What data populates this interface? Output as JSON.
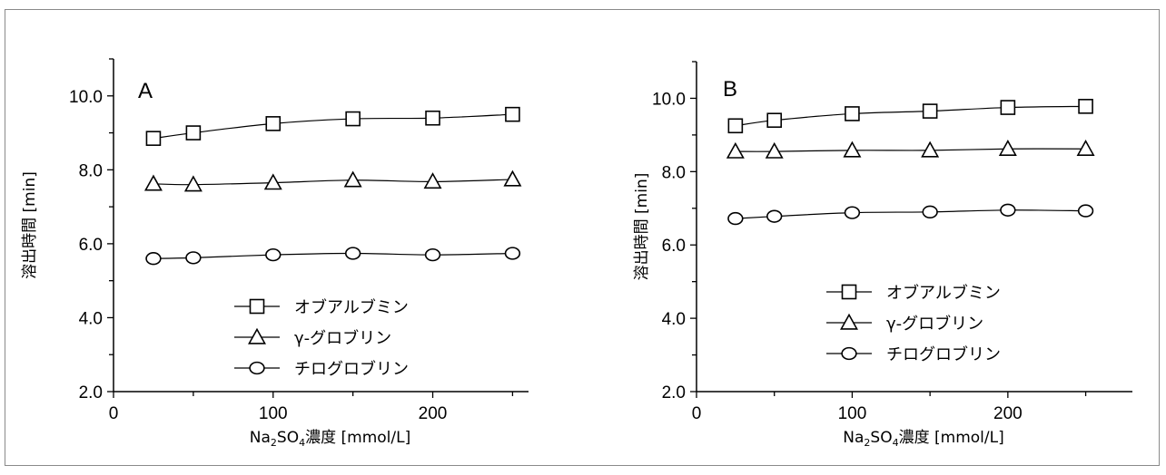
{
  "chart_data": [
    {
      "type": "line",
      "panel_label": "A",
      "xlabel": {
        "prefix": "Na",
        "sub1": "2",
        "mid": "SO",
        "sub2": "4",
        "suffix": "濃度 [mmol/L]"
      },
      "ylabel": "溶出時間 [min]",
      "xlim": [
        0,
        260
      ],
      "ylim": [
        2.0,
        11.0
      ],
      "xticks": [
        {
          "v": 0,
          "label": "0"
        },
        {
          "v": 100,
          "label": "100"
        },
        {
          "v": 200,
          "label": "200"
        }
      ],
      "yticks": [
        {
          "v": 2.0,
          "label": "2.0"
        },
        {
          "v": 4.0,
          "label": "4.0"
        },
        {
          "v": 6.0,
          "label": "6.0"
        },
        {
          "v": 8.0,
          "label": "8.0"
        },
        {
          "v": 10.0,
          "label": "10.0"
        }
      ],
      "legend_position": "lower-middle",
      "grid": false,
      "x": [
        25,
        50,
        100,
        150,
        200,
        250
      ],
      "series": [
        {
          "name": "オブアルブミン",
          "marker": "square",
          "values": [
            8.85,
            9.0,
            9.25,
            9.38,
            9.4,
            9.5
          ]
        },
        {
          "name": "γ-グロブリン",
          "marker": "triangle",
          "values": [
            7.62,
            7.6,
            7.65,
            7.72,
            7.68,
            7.74
          ]
        },
        {
          "name": "チログロブリン",
          "marker": "circle",
          "values": [
            5.6,
            5.62,
            5.7,
            5.74,
            5.7,
            5.74
          ]
        }
      ]
    },
    {
      "type": "line",
      "panel_label": "B",
      "xlabel": {
        "prefix": "Na",
        "sub1": "2",
        "mid": "SO",
        "sub2": "4",
        "suffix": "濃度 [mmol/L]"
      },
      "ylabel": "溶出時間 [min]",
      "xlim": [
        0,
        280
      ],
      "ylim": [
        2.0,
        11.0
      ],
      "xticks": [
        {
          "v": 0,
          "label": "0"
        },
        {
          "v": 100,
          "label": "100"
        },
        {
          "v": 200,
          "label": "200"
        }
      ],
      "yticks": [
        {
          "v": 2.0,
          "label": "2.0"
        },
        {
          "v": 4.0,
          "label": "4.0"
        },
        {
          "v": 6.0,
          "label": "6.0"
        },
        {
          "v": 8.0,
          "label": "8.0"
        },
        {
          "v": 10.0,
          "label": "10.0"
        }
      ],
      "legend_position": "lower-middle",
      "grid": false,
      "x": [
        25,
        50,
        100,
        150,
        200,
        250
      ],
      "series": [
        {
          "name": "オブアルブミン",
          "marker": "square",
          "values": [
            9.25,
            9.4,
            9.58,
            9.65,
            9.75,
            9.78
          ]
        },
        {
          "name": "γ-グロブリン",
          "marker": "triangle",
          "values": [
            8.55,
            8.55,
            8.58,
            8.58,
            8.62,
            8.62
          ]
        },
        {
          "name": "チログロブリン",
          "marker": "circle",
          "values": [
            6.72,
            6.78,
            6.88,
            6.9,
            6.95,
            6.93
          ]
        }
      ]
    }
  ]
}
